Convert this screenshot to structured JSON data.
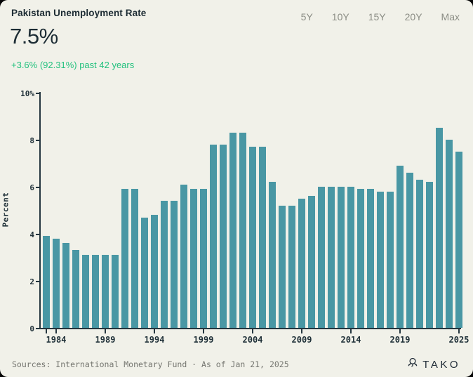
{
  "header": {
    "title": "Pakistan Unemployment Rate",
    "value": "7.5%",
    "change": "+3.6% (92.31%) past 42 years"
  },
  "ranges": [
    "5Y",
    "10Y",
    "15Y",
    "20Y",
    "Max"
  ],
  "chart_data": {
    "type": "bar",
    "title": "Pakistan Unemployment Rate",
    "x": [
      1983,
      1984,
      1985,
      1986,
      1987,
      1988,
      1989,
      1990,
      1991,
      1992,
      1993,
      1994,
      1995,
      1996,
      1997,
      1998,
      1999,
      2000,
      2001,
      2002,
      2003,
      2004,
      2005,
      2006,
      2007,
      2008,
      2009,
      2010,
      2011,
      2012,
      2013,
      2014,
      2015,
      2016,
      2017,
      2018,
      2019,
      2020,
      2021,
      2022,
      2023,
      2024,
      2025
    ],
    "values": [
      3.9,
      3.8,
      3.6,
      3.3,
      3.1,
      3.1,
      3.1,
      3.1,
      5.9,
      5.9,
      4.7,
      4.8,
      5.4,
      5.4,
      6.1,
      5.9,
      5.9,
      7.8,
      7.8,
      8.3,
      8.3,
      7.7,
      7.7,
      6.2,
      5.2,
      5.2,
      5.5,
      5.6,
      6.0,
      6.0,
      6.0,
      6.0,
      5.9,
      5.9,
      5.8,
      5.8,
      6.9,
      6.6,
      6.3,
      6.2,
      8.5,
      8.0,
      7.5
    ],
    "xlabel": "",
    "ylabel": "Percent",
    "ylim": [
      0,
      10
    ],
    "ytick_values": [
      0,
      2,
      4,
      6,
      8,
      10
    ],
    "ytick_labels": [
      "0",
      "2",
      "4",
      "6",
      "8",
      "10%"
    ],
    "xtick_years": [
      1984,
      1989,
      1994,
      1999,
      2004,
      2009,
      2014,
      2019,
      2025
    ],
    "xtick_unlabeled": [
      1983
    ],
    "grid": false,
    "legend": false,
    "bar_color": "#4997a4"
  },
  "footer": {
    "sources": "Sources: International Monetary Fund · As of Jan 21, 2025",
    "brand": "TAKO"
  },
  "colors": {
    "card_background": "#f1f1e9",
    "bar": "#4997a4",
    "axis": "#24363f",
    "accent_green": "#23c17e",
    "range_button_text": "#8b8d85",
    "footer_text": "#757670",
    "brand_text": "#232e39"
  }
}
